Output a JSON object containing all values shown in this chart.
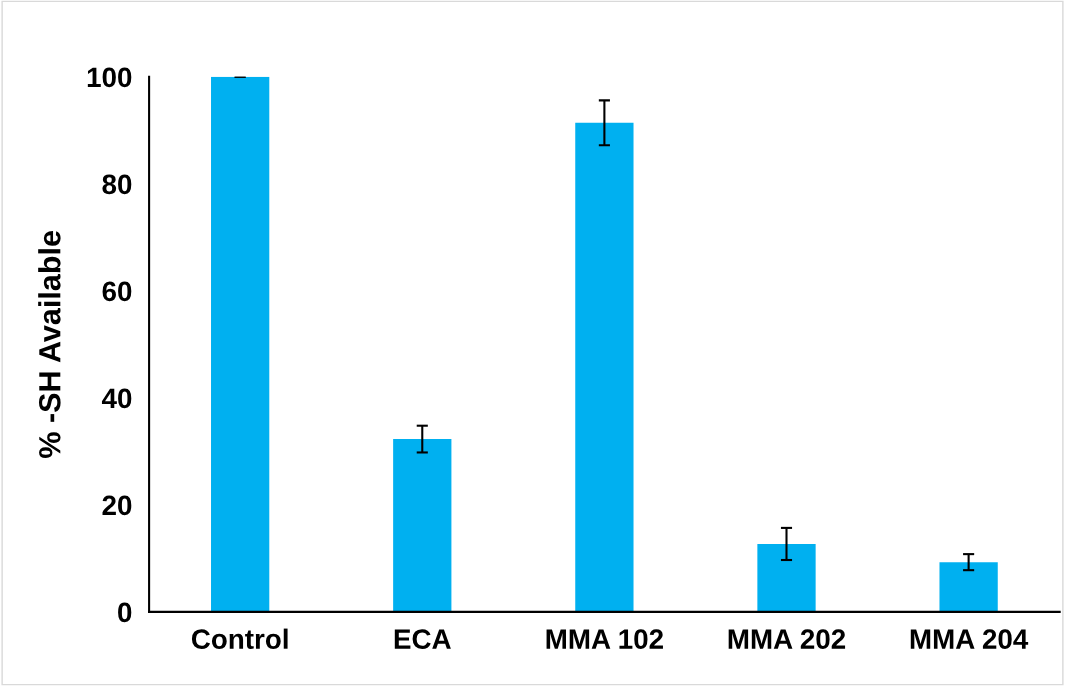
{
  "chart_data": {
    "type": "bar",
    "ylabel": "% -SH Available",
    "categories": [
      "Control",
      "ECA",
      "MMA 102",
      "MMA 202",
      "MMA 204"
    ],
    "values": [
      100,
      32.3,
      91.4,
      12.7,
      9.3
    ],
    "errors": [
      0,
      2.5,
      4.2,
      3,
      1.5
    ],
    "color": "#00b0f0",
    "ylim": [
      0,
      100
    ],
    "yticks": [
      0,
      20,
      40,
      60,
      80,
      100
    ],
    "grid": false
  }
}
